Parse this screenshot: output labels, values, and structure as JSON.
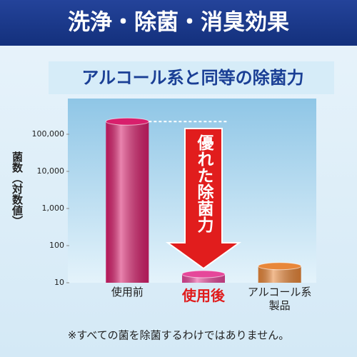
{
  "chart_data": {
    "type": "bar",
    "title": "洗浄・除菌・消臭効果",
    "subtitle": "アルコール系と同等の除菌力",
    "y_label": "菌数（対数値）",
    "annotation": "優れた除菌力",
    "footnote": "※すべての菌を除菌するわけではありません。",
    "categories": [
      "使用前",
      "使用後",
      "アルコール系製品"
    ],
    "values": [
      220000,
      17,
      28
    ],
    "colors": [
      "#d81f6c",
      "#e6479a",
      "#e8873a"
    ],
    "highlight_color": "#e01b1b",
    "log_scale": true,
    "ylim": [
      10,
      1000000
    ],
    "yticks": [
      10,
      100,
      {
        "value": 1000,
        "label": "1,000"
      },
      {
        "value": 10000,
        "label": "10,000"
      },
      {
        "value": 100000,
        "label": "100,000"
      }
    ]
  }
}
